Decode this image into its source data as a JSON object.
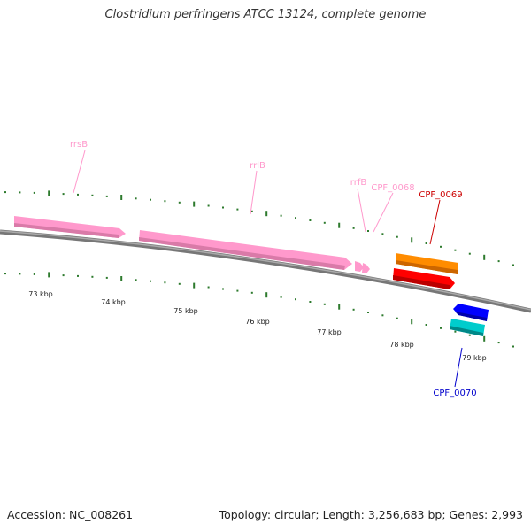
{
  "title": "Clostridium perfringens ATCC 13124, complete genome",
  "footer": {
    "accession": "Accession: NC_008261",
    "summary": "Topology: circular; Length: 3,256,683 bp; Genes: 2,993"
  },
  "colors": {
    "backbone": "#808080",
    "rna": "#ff99cc",
    "tick": "#2d7a2d",
    "cpf_0069_label": "#cc0000",
    "cpf_0070_label": "#0000cc"
  },
  "scale_labels": [
    "73 kbp",
    "74 kbp",
    "75 kbp",
    "76 kbp",
    "77 kbp",
    "78 kbp",
    "79 kbp"
  ],
  "features": [
    {
      "name": "rrsB",
      "type": "rRNA",
      "color": "#ff99cc"
    },
    {
      "name": "rrlB",
      "type": "rRNA",
      "color": "#ff99cc"
    },
    {
      "name": "rrfB",
      "type": "rRNA",
      "color": "#ff99cc"
    },
    {
      "name": "CPF_0068",
      "type": "tRNA",
      "color": "#ff99cc"
    },
    {
      "name": "CPF_0069",
      "type": "CDS",
      "color": "#cc0000"
    },
    {
      "name": "CPF_0070",
      "type": "CDS",
      "color": "#0000cc"
    }
  ]
}
